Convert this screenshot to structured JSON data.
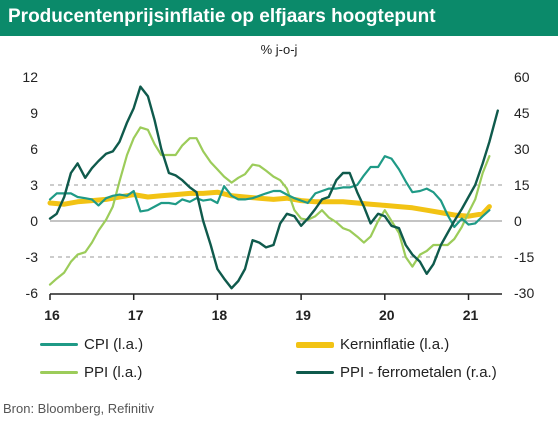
{
  "title": "Producentenprijsinflatie op elfjaars hoogtepunt",
  "source": "Bron: Bloomberg, Refinitiv",
  "colors": {
    "header_bg": "#0b8a6a",
    "cpi": "#1f9a86",
    "kerninflatie": "#f2c314",
    "ppi": "#9ccc5a",
    "ppi_ferro": "#0f5a4c"
  },
  "legend": [
    {
      "label": "CPI (l.a.)",
      "color": "#1f9a86"
    },
    {
      "label": "Kerninflatie (l.a.)",
      "color": "#f2c314"
    },
    {
      "label": "PPI (l.a.)",
      "color": "#9ccc5a"
    },
    {
      "label": "PPI - ferrometalen (r.a.)",
      "color": "#0f5a4c"
    }
  ],
  "chart_data": {
    "type": "line",
    "title": "Producentenprijsinflatie op elfjaars hoogtepunt",
    "unit_label": "% j-o-j",
    "x_ticks": [
      "16",
      "17",
      "18",
      "19",
      "20",
      "21"
    ],
    "x_range": [
      2016.0,
      2021.4
    ],
    "y_left": {
      "range": [
        -6,
        12
      ],
      "ticks": [
        "12",
        "9",
        "6",
        "3",
        "0",
        "-3",
        "-6"
      ]
    },
    "y_right": {
      "range": [
        -30,
        60
      ],
      "ticks": [
        "60",
        "45",
        "30",
        "15",
        "0",
        "-15",
        "-30"
      ]
    },
    "grid": "horizontal dashed at ±3 left / ±15 right",
    "legend_position": "bottom",
    "series": [
      {
        "name": "CPI (l.a.)",
        "axis": "left",
        "x": [
          2016.0,
          2016.08,
          2016.17,
          2016.25,
          2016.33,
          2016.42,
          2016.5,
          2016.58,
          2016.67,
          2016.75,
          2016.83,
          2016.92,
          2017.0,
          2017.08,
          2017.17,
          2017.25,
          2017.33,
          2017.42,
          2017.5,
          2017.58,
          2017.67,
          2017.75,
          2017.83,
          2017.92,
          2018.0,
          2018.08,
          2018.17,
          2018.25,
          2018.33,
          2018.42,
          2018.5,
          2018.58,
          2018.67,
          2018.75,
          2018.83,
          2018.92,
          2019.0,
          2019.08,
          2019.17,
          2019.25,
          2019.33,
          2019.42,
          2019.5,
          2019.58,
          2019.67,
          2019.75,
          2019.83,
          2019.92,
          2020.0,
          2020.08,
          2020.17,
          2020.25,
          2020.33,
          2020.42,
          2020.5,
          2020.58,
          2020.67,
          2020.75,
          2020.83,
          2020.92,
          2021.0,
          2021.08,
          2021.17,
          2021.25
        ],
        "y": [
          1.8,
          2.3,
          2.3,
          2.3,
          2.0,
          1.9,
          1.8,
          1.3,
          1.9,
          2.1,
          2.2,
          2.1,
          2.5,
          0.8,
          0.9,
          1.2,
          1.5,
          1.5,
          1.4,
          1.8,
          1.6,
          1.9,
          1.7,
          1.8,
          1.5,
          2.9,
          2.1,
          1.8,
          1.8,
          1.9,
          2.1,
          2.3,
          2.5,
          2.5,
          2.2,
          1.9,
          1.7,
          1.5,
          2.3,
          2.5,
          2.7,
          2.7,
          2.8,
          2.8,
          3.0,
          3.8,
          4.5,
          4.5,
          5.4,
          5.2,
          4.3,
          3.3,
          2.4,
          2.5,
          2.7,
          2.4,
          1.7,
          0.5,
          -0.5,
          0.2,
          -0.3,
          -0.2,
          0.4,
          0.9
        ]
      },
      {
        "name": "Kerninflatie (l.a.)",
        "axis": "left",
        "x": [
          2016.0,
          2016.17,
          2016.33,
          2016.5,
          2016.67,
          2016.83,
          2017.0,
          2017.17,
          2017.33,
          2017.5,
          2017.67,
          2017.83,
          2018.0,
          2018.17,
          2018.33,
          2018.5,
          2018.67,
          2018.83,
          2019.0,
          2019.17,
          2019.33,
          2019.5,
          2019.67,
          2019.83,
          2020.0,
          2020.17,
          2020.33,
          2020.5,
          2020.67,
          2020.83,
          2021.0,
          2021.17,
          2021.25
        ],
        "y": [
          1.5,
          1.4,
          1.6,
          1.7,
          1.8,
          2.0,
          2.2,
          2.0,
          2.1,
          2.2,
          2.3,
          2.3,
          2.4,
          2.1,
          2.0,
          1.9,
          1.8,
          1.9,
          1.7,
          1.6,
          1.6,
          1.6,
          1.5,
          1.4,
          1.3,
          1.2,
          1.1,
          0.9,
          0.7,
          0.5,
          0.4,
          0.6,
          1.2
        ]
      },
      {
        "name": "PPI (l.a.)",
        "axis": "left",
        "x": [
          2016.0,
          2016.08,
          2016.17,
          2016.25,
          2016.33,
          2016.42,
          2016.5,
          2016.58,
          2016.67,
          2016.75,
          2016.83,
          2016.92,
          2017.0,
          2017.08,
          2017.17,
          2017.25,
          2017.33,
          2017.42,
          2017.5,
          2017.58,
          2017.67,
          2017.75,
          2017.83,
          2017.92,
          2018.0,
          2018.08,
          2018.17,
          2018.25,
          2018.33,
          2018.42,
          2018.5,
          2018.58,
          2018.67,
          2018.75,
          2018.83,
          2018.92,
          2019.0,
          2019.08,
          2019.17,
          2019.25,
          2019.33,
          2019.42,
          2019.5,
          2019.58,
          2019.67,
          2019.75,
          2019.83,
          2019.92,
          2020.0,
          2020.08,
          2020.17,
          2020.25,
          2020.33,
          2020.42,
          2020.5,
          2020.58,
          2020.67,
          2020.75,
          2020.83,
          2020.92,
          2021.0,
          2021.08,
          2021.17,
          2021.25
        ],
        "y": [
          -5.3,
          -4.8,
          -4.3,
          -3.4,
          -2.8,
          -2.6,
          -1.8,
          -0.8,
          0.1,
          1.2,
          3.3,
          5.5,
          6.9,
          7.8,
          7.6,
          6.4,
          5.5,
          5.5,
          5.5,
          6.3,
          6.9,
          6.9,
          5.8,
          4.9,
          4.3,
          3.7,
          3.2,
          3.6,
          3.9,
          4.7,
          4.6,
          4.2,
          3.7,
          3.4,
          2.7,
          0.9,
          0.2,
          0.1,
          0.4,
          0.9,
          0.3,
          -0.1,
          -0.6,
          -0.8,
          -1.3,
          -1.8,
          -1.3,
          0.0,
          0.9,
          0.0,
          -1.0,
          -3.0,
          -3.8,
          -2.8,
          -2.5,
          -2.0,
          -2.0,
          -2.0,
          -1.5,
          -0.5,
          0.7,
          1.8,
          4.0,
          5.4
        ]
      },
      {
        "name": "PPI - ferrometalen (r.a.)",
        "axis": "right",
        "x": [
          2016.0,
          2016.08,
          2016.17,
          2016.25,
          2016.33,
          2016.42,
          2016.5,
          2016.58,
          2016.67,
          2016.75,
          2016.83,
          2016.92,
          2017.0,
          2017.08,
          2017.17,
          2017.25,
          2017.33,
          2017.42,
          2017.5,
          2017.58,
          2017.67,
          2017.75,
          2017.83,
          2017.92,
          2018.0,
          2018.08,
          2018.17,
          2018.25,
          2018.33,
          2018.42,
          2018.5,
          2018.58,
          2018.67,
          2018.75,
          2018.83,
          2018.92,
          2019.0,
          2019.08,
          2019.17,
          2019.25,
          2019.33,
          2019.42,
          2019.5,
          2019.58,
          2019.67,
          2019.75,
          2019.83,
          2019.92,
          2020.0,
          2020.08,
          2020.17,
          2020.25,
          2020.33,
          2020.42,
          2020.5,
          2020.58,
          2020.67,
          2020.75,
          2020.83,
          2020.92,
          2021.0,
          2021.08,
          2021.17,
          2021.25,
          2021.35
        ],
        "y": [
          1,
          3,
          10,
          20,
          24,
          18,
          22,
          25,
          28,
          29,
          33,
          41,
          47,
          56,
          52,
          42,
          30,
          20,
          19,
          17,
          14,
          12,
          0,
          -10,
          -20,
          -24,
          -28,
          -25,
          -20,
          -8,
          -9,
          -11,
          -10,
          -1,
          3,
          2,
          -2,
          1,
          5,
          9,
          10,
          17,
          20,
          20,
          12,
          6,
          -1,
          3,
          2,
          -2,
          -3,
          -10,
          -14,
          -17,
          -22,
          -18,
          -10,
          -5,
          0,
          5,
          10,
          15,
          24,
          33,
          46
        ]
      }
    ]
  }
}
